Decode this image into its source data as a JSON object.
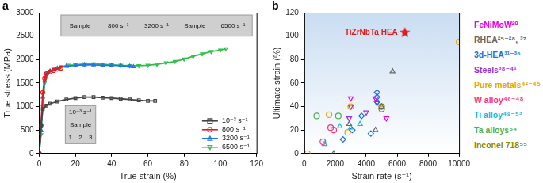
{
  "chart_data": [
    {
      "type": "line",
      "panel": "a",
      "x_label": "True strain (%)",
      "y_label": "True stress (MPa)",
      "xlim": [
        0,
        120
      ],
      "xticks": [
        0,
        20,
        40,
        60,
        80,
        100,
        120
      ],
      "ylim": [
        0,
        3000
      ],
      "yticks": [
        0,
        500,
        1000,
        1500,
        2000,
        2500,
        3000
      ],
      "grid": false,
      "legend": "bottom right",
      "series": [
        {
          "name": "10⁻³ s⁻¹",
          "color": "#444444",
          "marker": "square",
          "x": [
            0,
            1,
            2,
            4,
            6,
            10,
            15,
            20,
            25,
            30,
            35,
            40,
            45,
            50,
            55,
            60,
            64
          ],
          "values": [
            0,
            600,
            950,
            1020,
            1060,
            1110,
            1150,
            1180,
            1200,
            1200,
            1190,
            1180,
            1165,
            1150,
            1135,
            1120,
            1120
          ]
        },
        {
          "name": "800 s⁻¹",
          "color": "#e31a1c",
          "marker": "circle",
          "x": [
            0,
            1,
            2,
            3,
            4,
            6,
            8,
            10,
            12
          ],
          "values": [
            0,
            600,
            1300,
            1600,
            1700,
            1740,
            1770,
            1800,
            1820
          ]
        },
        {
          "name": "3200 s⁻¹",
          "color": "#1f77e4",
          "marker": "triangle",
          "x": [
            0,
            1,
            2,
            3,
            4,
            6,
            10,
            15,
            20,
            25,
            30,
            35,
            40,
            45,
            50,
            52
          ],
          "values": [
            0,
            500,
            1200,
            1550,
            1700,
            1760,
            1820,
            1860,
            1880,
            1890,
            1890,
            1880,
            1880,
            1870,
            1860,
            1850
          ]
        },
        {
          "name": "6500 s⁻¹",
          "color": "#2fbf4a",
          "marker": "triangle-down",
          "x": [
            0,
            1,
            2,
            3,
            5,
            8,
            12,
            16,
            20,
            25,
            30,
            35,
            40,
            45,
            50,
            55,
            60,
            65,
            70,
            75,
            80,
            85,
            90,
            95,
            100,
            103
          ],
          "values": [
            0,
            400,
            1000,
            1500,
            1720,
            1800,
            1850,
            1880,
            1890,
            1910,
            1910,
            1900,
            1890,
            1880,
            1870,
            1870,
            1880,
            1900,
            1930,
            1960,
            2010,
            2070,
            2120,
            2170,
            2200,
            2230
          ]
        }
      ],
      "insets": [
        {
          "labels": [
            [
              "Sample",
              "800 s⁻¹",
              "3200 s⁻¹",
              "Sample",
              "6500 s⁻¹"
            ]
          ]
        },
        {
          "labels": [
            [
              "10⁻³ s⁻¹"
            ],
            [
              "Sample"
            ],
            [
              "1",
              "2",
              "3"
            ]
          ]
        }
      ]
    },
    {
      "type": "scatter",
      "panel": "b",
      "x_label": "Strain rate (s⁻¹)",
      "y_label": "Ultimate strain (%)",
      "xlim": [
        0,
        10000
      ],
      "xticks": [
        0,
        2000,
        4000,
        6000,
        8000,
        10000
      ],
      "ylim": [
        0,
        120
      ],
      "yticks": [
        0,
        20,
        40,
        60,
        80,
        100,
        120
      ],
      "grid": false,
      "legend": "right",
      "highlight": {
        "name": "TiZrNbTa HEA",
        "x": 6500,
        "y": 103,
        "color": "#e31a1c",
        "marker": "star"
      },
      "series": [
        {
          "name": "FeNiMoW²⁰",
          "color": "#e600e6",
          "marker": "triangle-down",
          "x": [
            3000,
            4600,
            5300
          ],
          "values": [
            47,
            47,
            30
          ]
        },
        {
          "name": "RHEA²⁵⁻²⁸, ³⁷",
          "color": "#666666",
          "marker": "triangle",
          "x": [
            5700,
            2900,
            4600,
            5000,
            1900
          ],
          "values": [
            70,
            25,
            20,
            40,
            0
          ]
        },
        {
          "name": "3d-HEA³¹⁻³⁶",
          "color": "#1e6fd9",
          "marker": "diamond",
          "x": [
            4700,
            4700,
            4700,
            3100,
            4300,
            2500,
            3700
          ],
          "values": [
            52,
            48,
            44,
            20,
            17,
            12,
            32
          ]
        },
        {
          "name": "Steels³⁸⁻⁴¹",
          "color": "#9b30d9",
          "marker": "triangle-down",
          "x": [
            3000,
            4700,
            4000,
            2900
          ],
          "values": [
            40,
            43,
            35,
            30
          ]
        },
        {
          "name": "Pure metals⁴²⁻⁴⁵",
          "color": "#e6a800",
          "marker": "circle",
          "x": [
            10000,
            1600,
            3000,
            200,
            2800
          ],
          "values": [
            95,
            33,
            40,
            0,
            18
          ]
        },
        {
          "name": "W alloy⁴⁶⁻⁴⁸",
          "color": "#ff3377",
          "marker": "circle",
          "x": [
            1900,
            1200,
            1700
          ],
          "values": [
            20,
            10,
            22
          ]
        },
        {
          "name": "Ti alloy⁴⁹⁻⁵³",
          "color": "#1fb5d9",
          "marker": "triangle",
          "x": [
            1300,
            3600,
            3000,
            2300
          ],
          "values": [
            8,
            25,
            22,
            23
          ]
        },
        {
          "name": "Ta alloys⁵⁴",
          "color": "#4caf50",
          "marker": "circle",
          "x": [
            800,
            2200
          ],
          "values": [
            32,
            32
          ]
        },
        {
          "name": "Inconel 718⁵⁵",
          "color": "#8b8b00",
          "marker": "circle",
          "x": [
            5000,
            5000
          ],
          "values": [
            40,
            38
          ]
        }
      ]
    }
  ]
}
